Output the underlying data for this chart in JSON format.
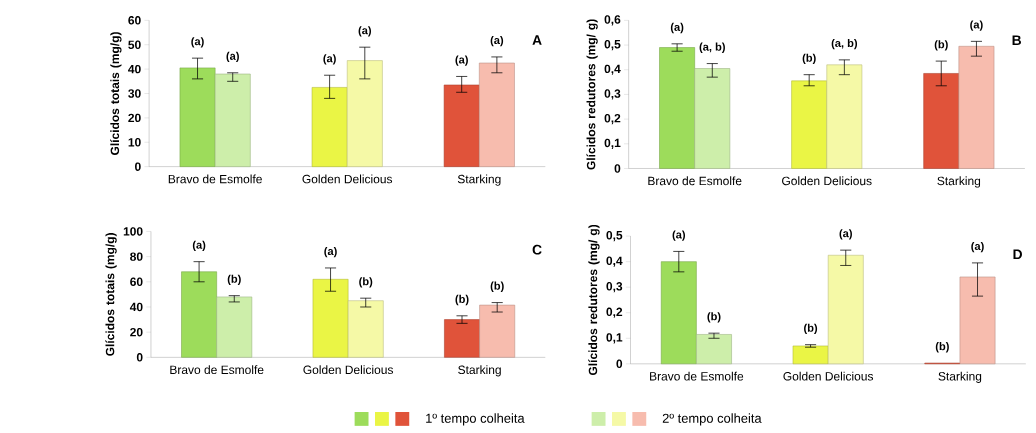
{
  "chart_data": [
    {
      "type": "bar",
      "title": "A",
      "ylabel": "Glícidos totais (mg/g)",
      "categories": [
        "Bravo de Esmolfe",
        "Golden Delicious",
        "Starking"
      ],
      "ylim": [
        0,
        60
      ],
      "yticks": [
        0,
        10,
        20,
        30,
        40,
        50,
        60
      ],
      "series": [
        {
          "colors": [
            "#9ddc5b",
            "#eaf545",
            "#e0533a"
          ],
          "values": [
            40.5,
            32.5,
            33.5
          ],
          "errors": [
            [
              36,
              44.5
            ],
            [
              28,
              37.5
            ],
            [
              30.5,
              37
            ]
          ],
          "value_labels": [
            "(a)",
            "(a)",
            "(a)"
          ]
        },
        {
          "colors": [
            "#cdeeaa",
            "#f5f9a6",
            "#f7bcae"
          ],
          "values": [
            38,
            43.5,
            42.5
          ],
          "errors": [
            [
              35,
              38.5
            ],
            [
              36,
              49
            ],
            [
              38.5,
              45
            ]
          ],
          "value_labels": [
            "(a)",
            "(a)",
            "(a)"
          ]
        }
      ]
    },
    {
      "type": "bar",
      "title": "B",
      "ylabel": "Glícidos redutores (mg/ g)",
      "categories": [
        "Bravo de Esmolfe",
        "Golden Delicious",
        "Starking"
      ],
      "ylim": [
        0,
        0.6
      ],
      "yticks": [
        0,
        {
          "value": 0.1,
          "label": "0,1"
        },
        {
          "value": 0.2,
          "label": "0,2"
        },
        {
          "value": 0.3,
          "label": "0,3"
        },
        {
          "value": 0.4,
          "label": "0,4"
        },
        {
          "value": 0.5,
          "label": "0,5"
        },
        {
          "value": 0.6,
          "label": "0,6"
        }
      ],
      "series": [
        {
          "colors": [
            "#9ddc5b",
            "#eaf545",
            "#e0533a"
          ],
          "values": [
            0.49,
            0.355,
            0.385
          ],
          "errors": [
            [
              0.475,
              0.505
            ],
            [
              0.335,
              0.38
            ],
            [
              0.335,
              0.435
            ]
          ],
          "value_labels": [
            "(a)",
            "(b)",
            "(b)"
          ]
        },
        {
          "colors": [
            "#cdeeaa",
            "#f5f9a6",
            "#f7bcae"
          ],
          "values": [
            0.405,
            0.42,
            0.495
          ],
          "errors": [
            [
              0.37,
              0.425
            ],
            [
              0.38,
              0.44
            ],
            [
              0.455,
              0.515
            ]
          ],
          "value_labels": [
            "(a, b)",
            "(a, b)",
            "(a)"
          ]
        }
      ]
    },
    {
      "type": "bar",
      "title": "C",
      "ylabel": "Glícidos totais (mg/g)",
      "categories": [
        "Bravo de Esmolfe",
        "Golden Delicious",
        "Starking"
      ],
      "ylim": [
        0,
        100
      ],
      "yticks": [
        0,
        20,
        40,
        60,
        80,
        100
      ],
      "legend": "bottom",
      "series": [
        {
          "name": "1º tempo colheita",
          "colors": [
            "#9ddc5b",
            "#eaf545",
            "#e0533a"
          ],
          "values": [
            68,
            62,
            30
          ],
          "errors": [
            [
              60,
              76
            ],
            [
              52.5,
              71
            ],
            [
              27,
              33
            ]
          ],
          "value_labels": [
            "(a)",
            "(a)",
            "(b)"
          ]
        },
        {
          "name": "2º tempo colheita",
          "colors": [
            "#cdeeaa",
            "#f5f9a6",
            "#f7bcae"
          ],
          "values": [
            48,
            45,
            41.5
          ],
          "errors": [
            [
              44,
              49
            ],
            [
              40,
              47
            ],
            [
              36,
              43.5
            ]
          ],
          "value_labels": [
            "(b)",
            "(b)",
            "(b)"
          ]
        }
      ]
    },
    {
      "type": "bar",
      "title": "D",
      "ylabel": "Glícidos redutores (mg/ g)",
      "categories": [
        "Bravo de Esmolfe",
        "Golden Delicious",
        "Starking"
      ],
      "ylim": [
        0,
        0.5
      ],
      "yticks": [
        0,
        {
          "value": 0.1,
          "label": "0,1"
        },
        {
          "value": 0.2,
          "label": "0,2"
        },
        {
          "value": 0.3,
          "label": "0,3"
        },
        {
          "value": 0.4,
          "label": "0,4"
        },
        {
          "value": 0.5,
          "label": "0,5"
        }
      ],
      "series": [
        {
          "colors": [
            "#9ddc5b",
            "#eaf545",
            "#e0533a"
          ],
          "values": [
            0.4,
            0.07,
            0.003
          ],
          "errors": [
            [
              0.36,
              0.44
            ],
            [
              0.065,
              0.075
            ],
            null
          ],
          "value_labels": [
            "(a)",
            "(b)",
            "(b)"
          ]
        },
        {
          "colors": [
            "#cdeeaa",
            "#f5f9a6",
            "#f7bcae"
          ],
          "values": [
            0.115,
            0.425,
            0.34
          ],
          "errors": [
            [
              0.1,
              0.12
            ],
            [
              0.385,
              0.445
            ],
            [
              0.265,
              0.395
            ]
          ],
          "value_labels": [
            "(b)",
            "(a)",
            "(a)"
          ]
        }
      ]
    }
  ]
}
